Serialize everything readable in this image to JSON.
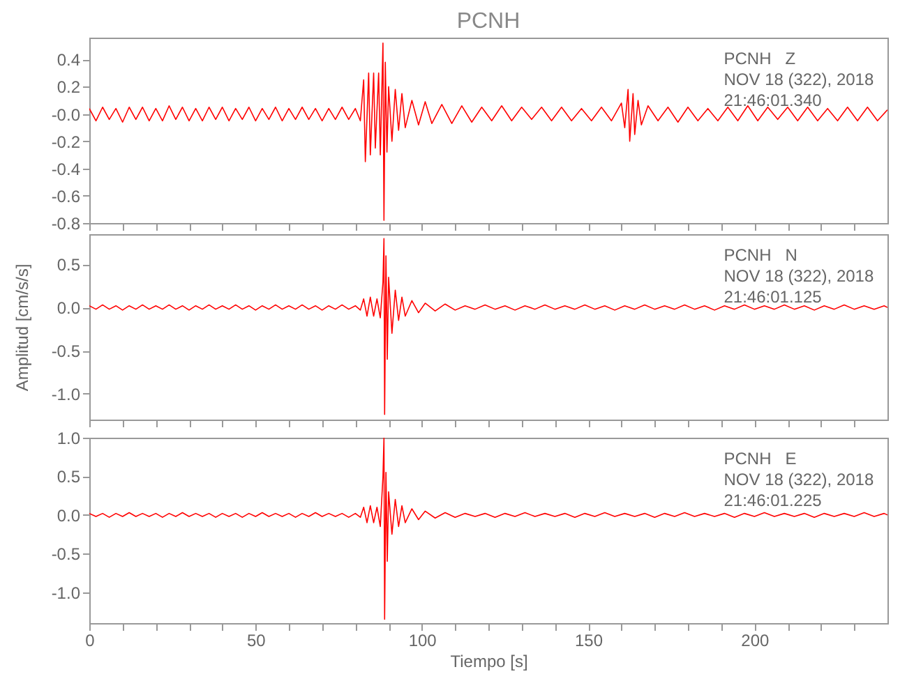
{
  "chart_data": [
    {
      "type": "line",
      "title": "PCNH",
      "xlim": [
        0,
        240
      ],
      "ylim": [
        -0.8,
        0.56
      ],
      "tick_labels": "y",
      "xticks": [
        0,
        {
          "value": 10,
          "label": null
        },
        {
          "value": 20,
          "label": null
        },
        {
          "value": 30,
          "label": null
        },
        {
          "value": 40,
          "label": null
        },
        50,
        {
          "value": 60,
          "label": null
        },
        {
          "value": 70,
          "label": null
        },
        {
          "value": 80,
          "label": null
        },
        {
          "value": 90,
          "label": null
        },
        100,
        {
          "value": 110,
          "label": null
        },
        {
          "value": 120,
          "label": null
        },
        {
          "value": 130,
          "label": null
        },
        {
          "value": 140,
          "label": null
        },
        150,
        {
          "value": 160,
          "label": null
        },
        {
          "value": 170,
          "label": null
        },
        {
          "value": 180,
          "label": null
        },
        {
          "value": 190,
          "label": null
        },
        200,
        {
          "value": 210,
          "label": null
        },
        {
          "value": 220,
          "label": null
        },
        {
          "value": 230,
          "label": null
        }
      ],
      "yticks": [
        0.4,
        0.2,
        {
          "value": 0,
          "label": "-0.0"
        },
        -0.2,
        -0.4,
        -0.6,
        -0.8
      ],
      "annotations": [
        "PCNH   Z",
        "NOV 18 (322), 2018",
        "21:46:01.340"
      ],
      "series": [
        {
          "color": "#ff0000",
          "x": [
            0,
            2,
            4,
            6,
            8,
            10,
            12,
            14,
            16,
            18,
            20,
            22,
            24,
            26,
            28,
            30,
            32,
            34,
            36,
            38,
            40,
            42,
            44,
            46,
            48,
            50,
            52,
            54,
            56,
            58,
            60,
            62,
            64,
            66,
            68,
            70,
            72,
            74,
            76,
            78,
            80,
            81.5,
            82.5,
            83,
            84,
            84.5,
            85.5,
            86,
            87,
            87.5,
            88.3,
            88.6,
            89,
            89.5,
            90,
            91,
            92,
            93,
            94,
            95,
            97,
            99,
            101,
            103,
            106,
            109,
            112,
            115,
            118,
            121,
            124,
            127,
            130,
            133,
            136,
            139,
            142,
            145,
            148,
            151,
            154,
            157,
            160,
            161,
            162,
            162.5,
            163.5,
            164,
            165,
            166,
            168,
            171,
            174,
            177,
            180,
            183,
            186,
            189,
            192,
            195,
            198,
            201,
            204,
            207,
            210,
            213,
            216,
            219,
            222,
            225,
            228,
            231,
            234,
            237,
            240
          ],
          "values": [
            0.04,
            -0.05,
            0.05,
            -0.04,
            0.04,
            -0.06,
            0.05,
            -0.04,
            0.05,
            -0.05,
            0.04,
            -0.05,
            0.06,
            -0.04,
            0.05,
            -0.05,
            0.04,
            -0.05,
            0.05,
            -0.04,
            0.05,
            -0.05,
            0.04,
            -0.04,
            0.05,
            -0.05,
            0.04,
            -0.04,
            0.05,
            -0.05,
            0.04,
            -0.04,
            0.05,
            -0.04,
            0.04,
            -0.05,
            0.04,
            -0.04,
            0.05,
            -0.04,
            0.04,
            -0.05,
            0.25,
            -0.35,
            0.3,
            -0.3,
            0.3,
            -0.25,
            0.3,
            -0.3,
            0.52,
            -0.78,
            0.38,
            -0.28,
            0.2,
            -0.2,
            0.18,
            -0.12,
            0.15,
            -0.1,
            0.1,
            -0.08,
            0.09,
            -0.07,
            0.07,
            -0.07,
            0.06,
            -0.06,
            0.05,
            -0.05,
            0.06,
            -0.05,
            0.05,
            -0.04,
            0.05,
            -0.05,
            0.05,
            -0.05,
            0.04,
            -0.05,
            0.05,
            -0.05,
            0.08,
            -0.1,
            0.18,
            -0.2,
            0.15,
            -0.15,
            0.1,
            -0.08,
            0.06,
            -0.05,
            0.05,
            -0.06,
            0.05,
            -0.05,
            0.04,
            -0.05,
            0.05,
            -0.05,
            0.06,
            -0.05,
            0.05,
            -0.04,
            0.05,
            -0.05,
            0.05,
            -0.05,
            0.04,
            -0.05,
            0.05,
            -0.05,
            0.05,
            -0.05,
            0.03
          ]
        }
      ]
    },
    {
      "type": "line",
      "ylabel": "Amplitud [cm/s/s]",
      "xlim": [
        0,
        240
      ],
      "ylim": [
        -1.3,
        0.85
      ],
      "tick_labels": "y",
      "xticks": [
        0,
        {
          "value": 10,
          "label": null
        },
        {
          "value": 20,
          "label": null
        },
        {
          "value": 30,
          "label": null
        },
        {
          "value": 40,
          "label": null
        },
        50,
        {
          "value": 60,
          "label": null
        },
        {
          "value": 70,
          "label": null
        },
        {
          "value": 80,
          "label": null
        },
        {
          "value": 90,
          "label": null
        },
        100,
        {
          "value": 110,
          "label": null
        },
        {
          "value": 120,
          "label": null
        },
        {
          "value": 130,
          "label": null
        },
        {
          "value": 140,
          "label": null
        },
        150,
        {
          "value": 160,
          "label": null
        },
        {
          "value": 170,
          "label": null
        },
        {
          "value": 180,
          "label": null
        },
        {
          "value": 190,
          "label": null
        },
        200,
        {
          "value": 210,
          "label": null
        },
        {
          "value": 220,
          "label": null
        },
        {
          "value": 230,
          "label": null
        }
      ],
      "yticks": [
        0.5,
        {
          "value": 0,
          "label": "0.0"
        },
        -0.5,
        {
          "value": -1,
          "label": "-1.0"
        }
      ],
      "annotations": [
        "PCNH   N",
        "NOV 18 (322), 2018",
        "21:46:01.125"
      ],
      "series": [
        {
          "color": "#ff0000",
          "x": [
            0,
            2,
            4,
            6,
            8,
            10,
            12,
            14,
            16,
            18,
            20,
            22,
            24,
            26,
            28,
            30,
            32,
            34,
            36,
            38,
            40,
            42,
            44,
            46,
            48,
            50,
            52,
            54,
            56,
            58,
            60,
            62,
            64,
            66,
            68,
            70,
            72,
            74,
            76,
            78,
            80,
            81.5,
            82.5,
            83.5,
            84.5,
            85.5,
            86.5,
            87.5,
            88.3,
            88.6,
            88.8,
            89.2,
            89.6,
            90,
            91,
            92,
            93,
            94,
            95,
            97,
            99,
            101,
            104,
            107,
            110,
            113,
            116,
            119,
            122,
            125,
            128,
            131,
            134,
            137,
            140,
            143,
            146,
            149,
            152,
            155,
            158,
            161,
            164,
            167,
            170,
            173,
            176,
            179,
            182,
            185,
            188,
            191,
            194,
            197,
            200,
            203,
            206,
            209,
            212,
            215,
            218,
            221,
            224,
            227,
            230,
            233,
            236,
            239,
            240
          ],
          "values": [
            0.02,
            -0.02,
            0.03,
            -0.02,
            0.02,
            -0.03,
            0.02,
            -0.02,
            0.03,
            -0.02,
            0.02,
            -0.02,
            0.03,
            -0.02,
            0.02,
            -0.03,
            0.02,
            -0.02,
            0.03,
            -0.02,
            0.02,
            -0.02,
            0.03,
            -0.02,
            0.02,
            -0.03,
            0.02,
            -0.02,
            0.03,
            -0.02,
            0.02,
            -0.02,
            0.03,
            -0.02,
            0.02,
            -0.03,
            0.02,
            -0.02,
            0.03,
            -0.02,
            0.02,
            -0.03,
            0.1,
            -0.1,
            0.12,
            -0.1,
            0.1,
            -0.12,
            0.3,
            0.8,
            -1.24,
            0.6,
            -0.6,
            0.35,
            -0.3,
            0.2,
            -0.15,
            0.12,
            -0.1,
            0.08,
            -0.06,
            0.05,
            -0.04,
            0.04,
            -0.03,
            0.02,
            -0.02,
            0.03,
            -0.02,
            0.02,
            -0.03,
            0.02,
            -0.02,
            0.03,
            -0.02,
            0.02,
            -0.02,
            0.03,
            -0.02,
            0.02,
            -0.03,
            0.02,
            -0.02,
            0.03,
            -0.02,
            0.02,
            -0.02,
            0.03,
            -0.02,
            0.02,
            -0.03,
            0.02,
            -0.02,
            0.03,
            -0.02,
            0.02,
            -0.02,
            0.03,
            -0.02,
            0.02,
            -0.03,
            0.02,
            -0.02,
            0.03,
            -0.02,
            0.02,
            -0.02,
            0.02,
            0
          ]
        }
      ]
    },
    {
      "type": "line",
      "xlabel": "Tiempo [s]",
      "xlim": [
        0,
        240
      ],
      "ylim": [
        -1.4,
        1
      ],
      "xticks": [
        0,
        {
          "value": 10,
          "label": null
        },
        {
          "value": 20,
          "label": null
        },
        {
          "value": 30,
          "label": null
        },
        {
          "value": 40,
          "label": null
        },
        50,
        {
          "value": 60,
          "label": null
        },
        {
          "value": 70,
          "label": null
        },
        {
          "value": 80,
          "label": null
        },
        {
          "value": 90,
          "label": null
        },
        100,
        {
          "value": 110,
          "label": null
        },
        {
          "value": 120,
          "label": null
        },
        {
          "value": 130,
          "label": null
        },
        {
          "value": 140,
          "label": null
        },
        150,
        {
          "value": 160,
          "label": null
        },
        {
          "value": 170,
          "label": null
        },
        {
          "value": 180,
          "label": null
        },
        {
          "value": 190,
          "label": null
        },
        200,
        {
          "value": 210,
          "label": null
        },
        {
          "value": 220,
          "label": null
        },
        {
          "value": 230,
          "label": null
        }
      ],
      "yticks": [
        {
          "value": 1,
          "label": "1.0"
        },
        0.5,
        {
          "value": 0,
          "label": "0.0"
        },
        -0.5,
        {
          "value": -1,
          "label": "-1.0"
        }
      ],
      "annotations": [
        "PCNH   E",
        "NOV 18 (322), 2018",
        "21:46:01.225"
      ],
      "series": [
        {
          "color": "#ff0000",
          "x": [
            0,
            2,
            4,
            6,
            8,
            10,
            12,
            14,
            16,
            18,
            20,
            22,
            24,
            26,
            28,
            30,
            32,
            34,
            36,
            38,
            40,
            42,
            44,
            46,
            48,
            50,
            52,
            54,
            56,
            58,
            60,
            62,
            64,
            66,
            68,
            70,
            72,
            74,
            76,
            78,
            80,
            81.5,
            82.5,
            83.5,
            84.5,
            85.5,
            86.5,
            87.5,
            88.3,
            88.6,
            88.8,
            89.2,
            89.6,
            90,
            91,
            92,
            93,
            94,
            95,
            97,
            99,
            101,
            104,
            107,
            110,
            113,
            116,
            119,
            122,
            125,
            128,
            131,
            134,
            137,
            140,
            143,
            146,
            149,
            152,
            155,
            158,
            161,
            164,
            167,
            170,
            173,
            176,
            179,
            182,
            185,
            188,
            191,
            194,
            197,
            200,
            203,
            206,
            209,
            212,
            215,
            218,
            221,
            224,
            227,
            230,
            233,
            236,
            239,
            240
          ],
          "values": [
            0.02,
            -0.02,
            0.02,
            -0.03,
            0.02,
            -0.02,
            0.03,
            -0.02,
            0.02,
            -0.02,
            0.02,
            -0.03,
            0.02,
            -0.02,
            0.03,
            -0.02,
            0.02,
            -0.02,
            0.02,
            -0.03,
            0.02,
            -0.02,
            0.02,
            -0.03,
            0.02,
            -0.02,
            0.03,
            -0.02,
            0.02,
            -0.02,
            0.02,
            -0.03,
            0.02,
            -0.02,
            0.03,
            -0.02,
            0.02,
            -0.02,
            0.02,
            -0.03,
            0.02,
            -0.03,
            0.1,
            -0.1,
            0.12,
            -0.1,
            0.1,
            -0.15,
            0.5,
            1,
            -1.35,
            0.55,
            -0.6,
            0.3,
            -0.25,
            0.2,
            -0.15,
            0.12,
            -0.1,
            0.08,
            -0.06,
            0.05,
            -0.04,
            0.03,
            -0.03,
            0.02,
            -0.02,
            0.02,
            -0.03,
            0.02,
            -0.02,
            0.03,
            -0.02,
            0.02,
            -0.02,
            0.02,
            -0.03,
            0.02,
            -0.02,
            0.03,
            -0.02,
            0.02,
            -0.02,
            0.02,
            -0.03,
            0.02,
            -0.02,
            0.03,
            -0.02,
            0.02,
            -0.02,
            0.02,
            -0.03,
            0.02,
            -0.02,
            0.03,
            -0.02,
            0.02,
            -0.02,
            0.02,
            -0.03,
            0.02,
            -0.02,
            0.02,
            -0.02,
            0.03,
            -0.02,
            0.02,
            0
          ]
        }
      ]
    }
  ]
}
